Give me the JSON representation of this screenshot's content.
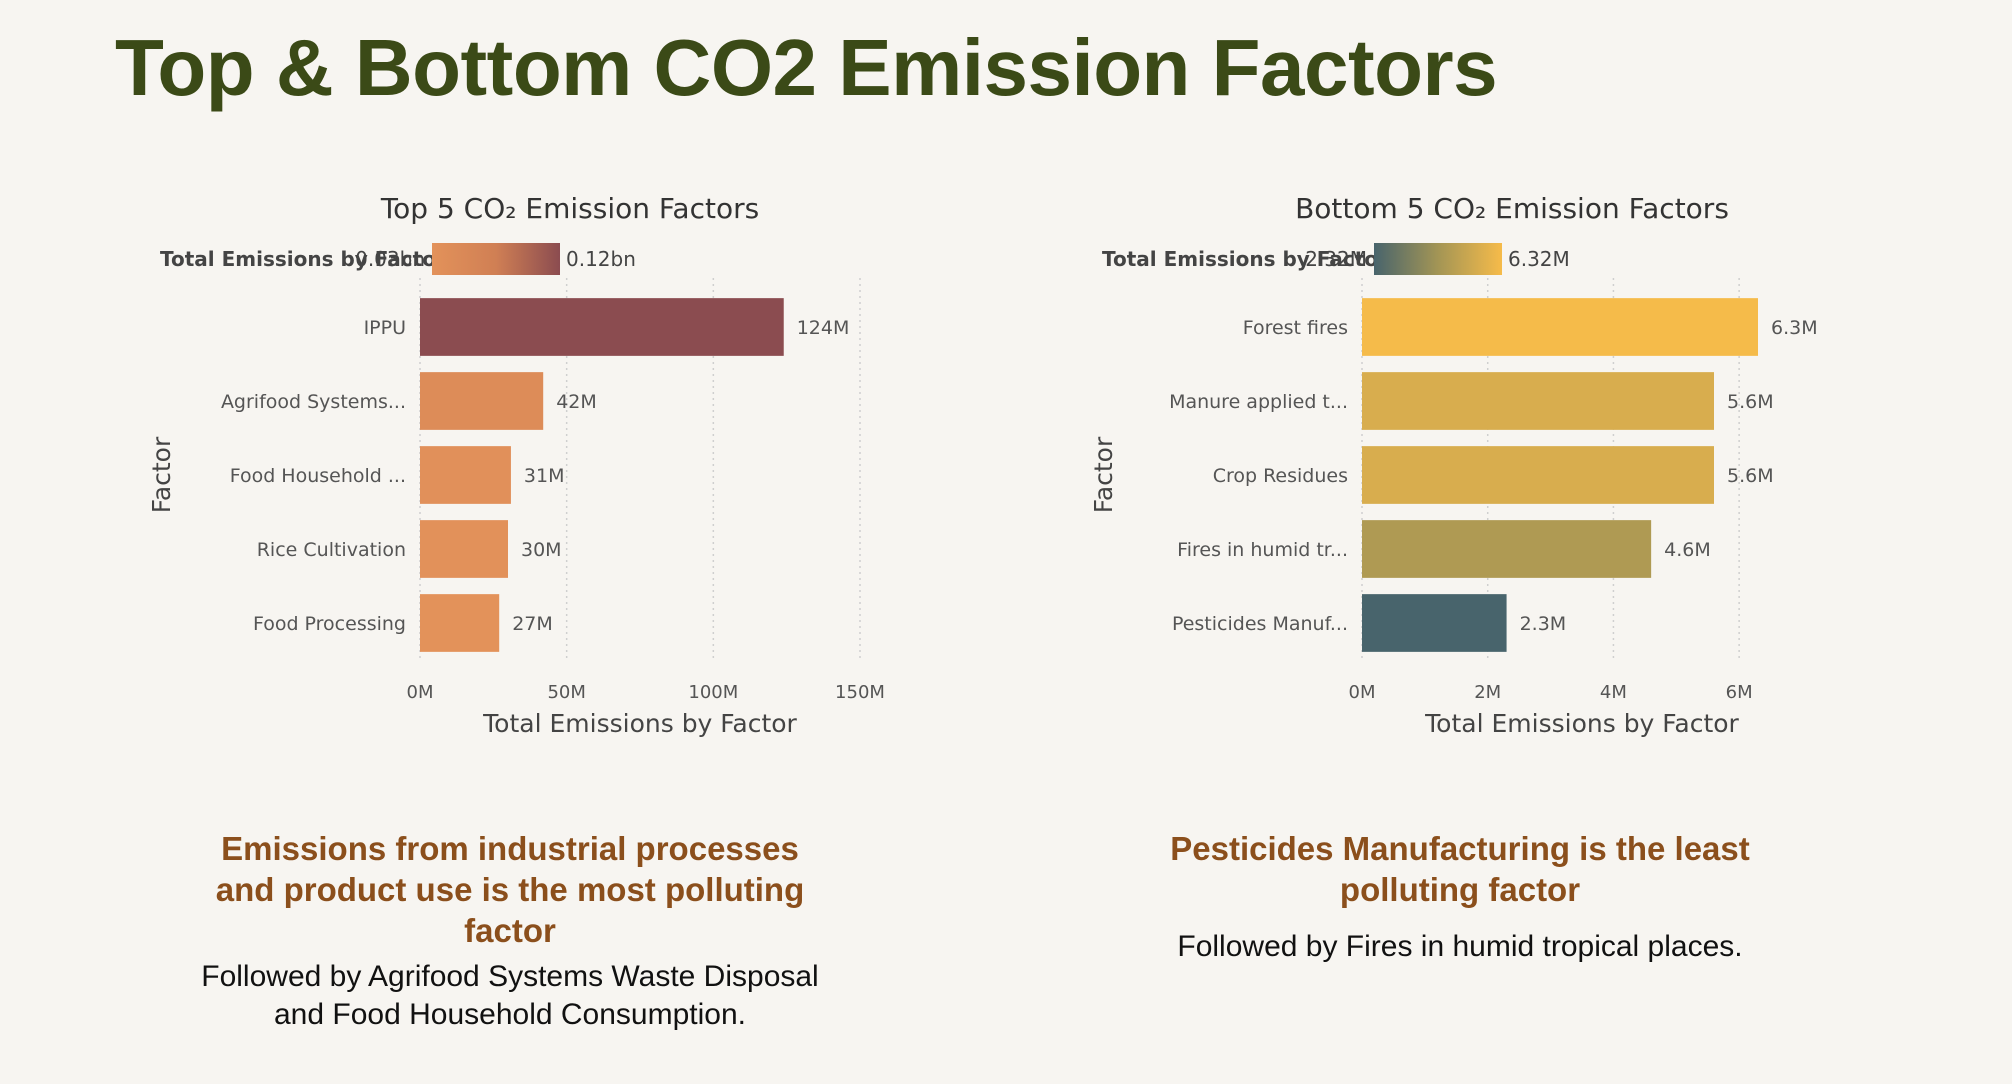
{
  "page": {
    "title": "Top & Bottom CO2 Emission Factors"
  },
  "insights": {
    "left": {
      "headline": "Emissions from industrial processes and product use is the most polluting factor",
      "sub": "Followed by Agrifood Systems Waste Disposal and Food Household Consumption."
    },
    "right": {
      "headline": "Pesticides Manufacturing is the least polluting factor",
      "sub": "Followed by Fires in humid tropical places."
    }
  },
  "chart_data": [
    {
      "type": "bar",
      "orientation": "horizontal",
      "title": "Top 5 CO₂ Emission Factors",
      "xlabel": "Total Emissions by Factor",
      "ylabel": "Factor",
      "categories": [
        "IPPU",
        "Agrifood Systems...",
        "Food Household ...",
        "Rice Cultivation",
        "Food Processing"
      ],
      "values": [
        124000000,
        42000000,
        31000000,
        30000000,
        27000000
      ],
      "value_labels": [
        "124M",
        "42M",
        "31M",
        "30M",
        "27M"
      ],
      "xlim": [
        0,
        150000000
      ],
      "xticks": [
        0,
        50000000,
        100000000,
        150000000
      ],
      "xtick_labels": [
        "0M",
        "50M",
        "100M",
        "150M"
      ],
      "grid": true,
      "colorbar": {
        "label": "Total Emissions by Factor",
        "min_label": "0.03bn",
        "max_label": "0.12bn",
        "min": 27000000,
        "max": 124000000,
        "colors": [
          "#e3925a",
          "#d07f54",
          "#8b4c50"
        ],
        "placement": "top"
      }
    },
    {
      "type": "bar",
      "orientation": "horizontal",
      "title": "Bottom 5 CO₂ Emission Factors",
      "xlabel": "Total Emissions by Factor",
      "ylabel": "Factor",
      "categories": [
        "Forest fires",
        "Manure applied t...",
        "Crop Residues",
        "Fires in humid tr...",
        "Pesticides Manuf..."
      ],
      "values": [
        6300000,
        5600000,
        5600000,
        4600000,
        2300000
      ],
      "value_labels": [
        "6.3M",
        "5.6M",
        "5.6M",
        "4.6M",
        "2.3M"
      ],
      "xlim": [
        0,
        7000000
      ],
      "xticks": [
        0,
        2000000,
        4000000,
        6000000
      ],
      "xtick_labels": [
        "0M",
        "2M",
        "4M",
        "6M"
      ],
      "grid": true,
      "colorbar": {
        "label": "Total Emissions by Factor",
        "min_label": "2.32M",
        "max_label": "6.32M",
        "min": 2320000,
        "max": 6320000,
        "colors": [
          "#48646c",
          "#a39555",
          "#f6bb4a"
        ],
        "placement": "top"
      }
    }
  ]
}
